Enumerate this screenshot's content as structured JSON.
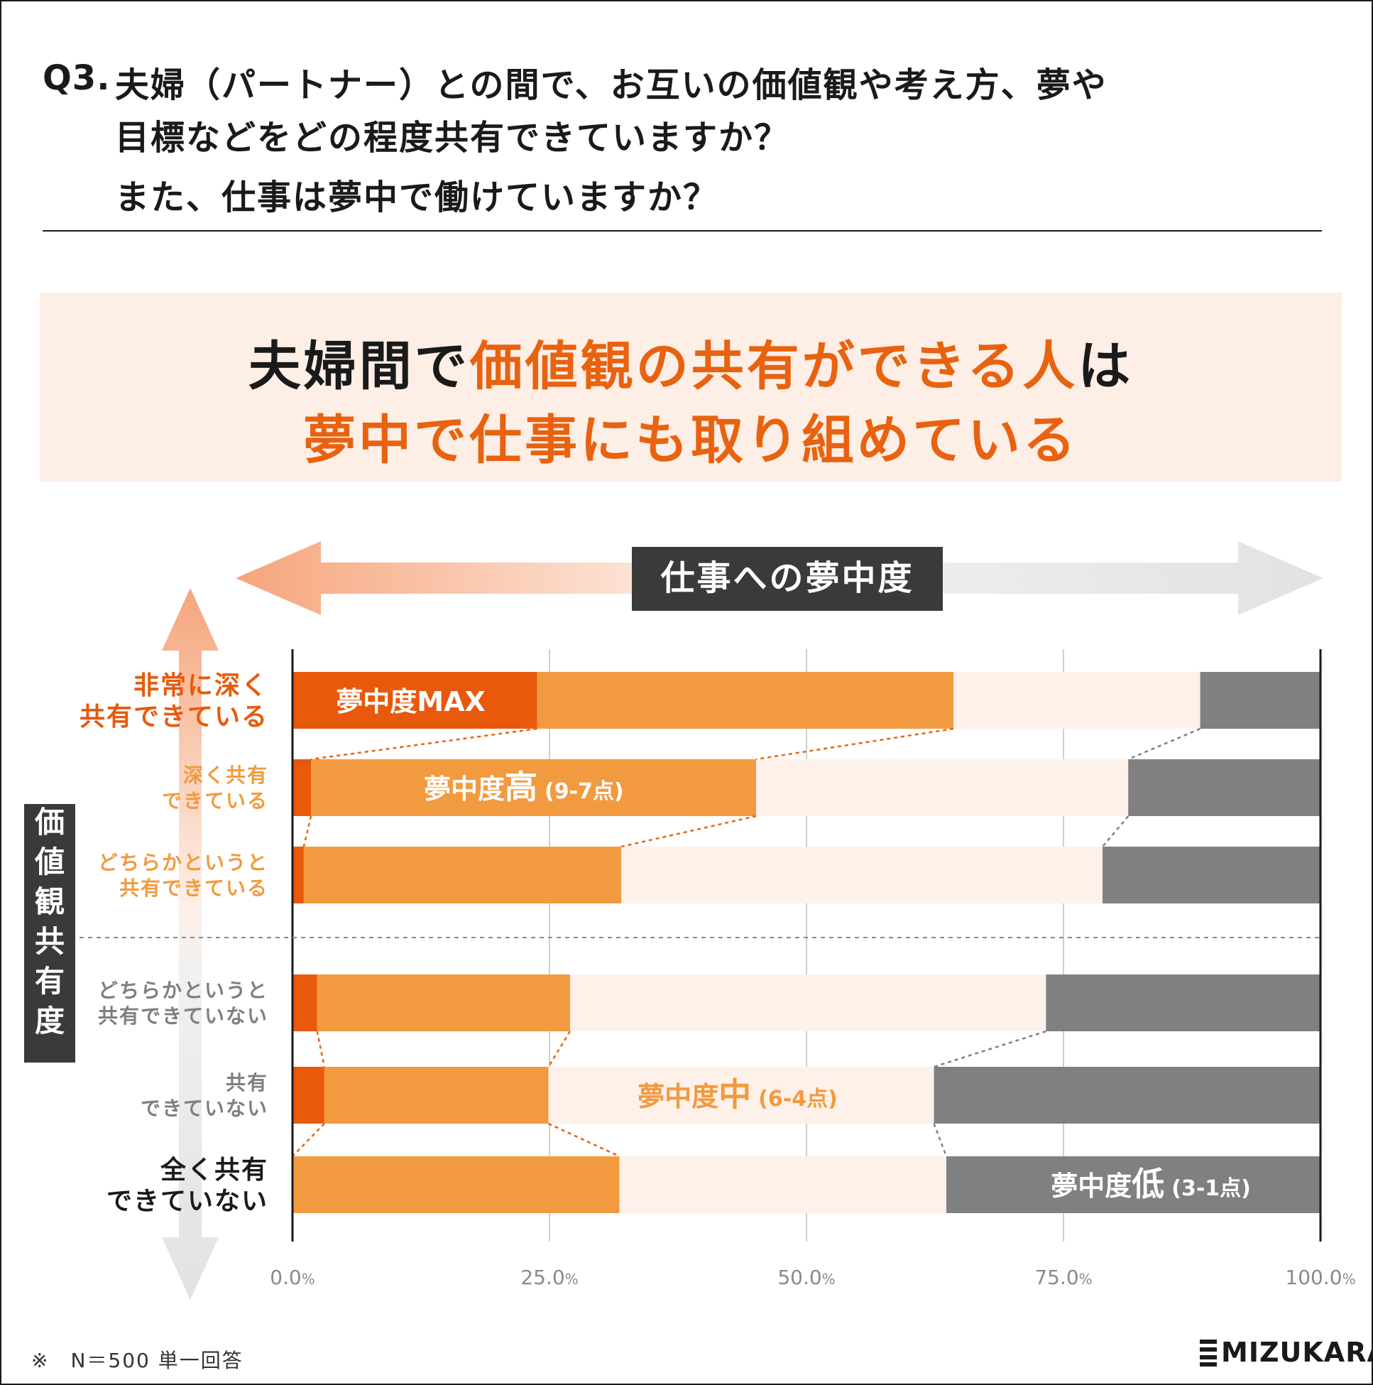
{
  "question": {
    "label": "Q3.",
    "line1": "夫婦（パートナー）との間で、お互いの価値観や考え方、夢や",
    "line2": "目標などをどの程度共有できていますか？",
    "line3": "また、仕事は夢中で働けていますか？"
  },
  "headline": {
    "line1_prefix": "夫婦間で",
    "line1_emphasis": "価値観の共有ができる人",
    "line1_suffix": "は",
    "line2": "夢中で仕事にも取り組めている"
  },
  "footnote": "※　N＝500 単一回答",
  "logo": {
    "text": "MIZUKARA"
  },
  "colors": {
    "max": "#e8590c",
    "high": "#f29a3f",
    "mid": "#fdf1ea",
    "low": "#808080",
    "accent": "#e8620f",
    "dark_label": "#3a3a3a"
  },
  "chart_data": {
    "type": "bar",
    "orientation": "horizontal-stacked-100",
    "x_axis_title": "仕事への夢中度",
    "y_axis_title": "価値観共有度",
    "xlim": [
      0,
      100
    ],
    "xticks": [
      {
        "value": 0,
        "label": "0.0",
        "unit": "%"
      },
      {
        "value": 25,
        "label": "25.0",
        "unit": "%"
      },
      {
        "value": 50,
        "label": "50.0",
        "unit": "%"
      },
      {
        "value": 75,
        "label": "75.0",
        "unit": "%"
      },
      {
        "value": 100,
        "label": "100.0",
        "unit": "%"
      }
    ],
    "categories": [
      {
        "lines": [
          "非常に深く",
          "共有できている"
        ],
        "style": "strong-orange"
      },
      {
        "lines": [
          "深く共有",
          "できている"
        ],
        "style": "orange"
      },
      {
        "lines": [
          "どちらかというと",
          "共有できている"
        ],
        "style": "orange"
      },
      {
        "lines": [
          "どちらかというと",
          "共有できていない"
        ],
        "style": "gray"
      },
      {
        "lines": [
          "共有",
          "できていない"
        ],
        "style": "gray"
      },
      {
        "lines": [
          "全く共有",
          "できていない"
        ],
        "style": "strong-dark"
      }
    ],
    "series": [
      {
        "name": "夢中度MAX",
        "color_key": "max",
        "values": [
          23.8,
          1.8,
          1.1,
          2.4,
          3.1,
          0.0
        ]
      },
      {
        "name": "夢中度高",
        "score": "(9-7点)",
        "color_key": "high",
        "values": [
          40.5,
          43.3,
          30.9,
          24.6,
          21.8,
          31.8
        ]
      },
      {
        "name": "夢中度中",
        "score": "(6-4点)",
        "color_key": "mid",
        "values": [
          24.0,
          36.2,
          46.8,
          46.3,
          37.5,
          31.8
        ]
      },
      {
        "name": "夢中度低",
        "score": "(3-1点)",
        "color_key": "low",
        "values": [
          11.7,
          18.7,
          21.2,
          26.7,
          37.6,
          36.4
        ]
      }
    ]
  }
}
